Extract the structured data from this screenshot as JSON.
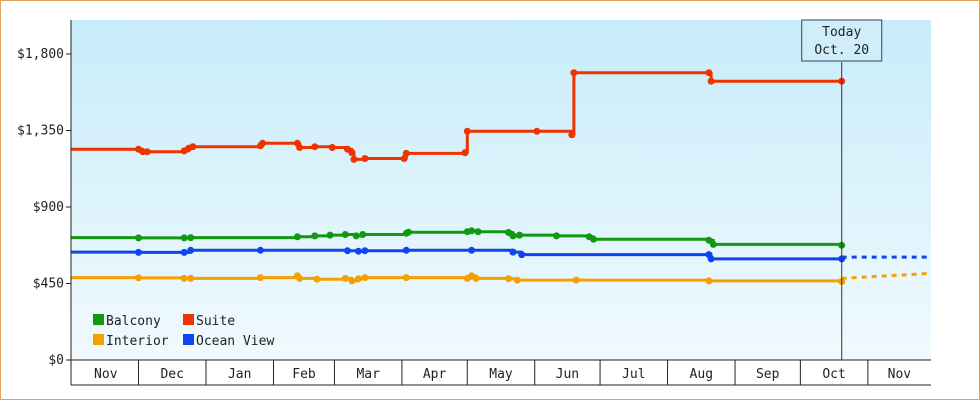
{
  "chart_data": {
    "type": "line",
    "title": "",
    "xlabel": "",
    "ylabel": "",
    "ylim": [
      0,
      2000
    ],
    "yticks": [
      {
        "value": 0,
        "label": "$0"
      },
      {
        "value": 450,
        "label": "$450"
      },
      {
        "value": 900,
        "label": "$900"
      },
      {
        "value": 1350,
        "label": "$1,350"
      },
      {
        "value": 1800,
        "label": "$1,800"
      }
    ],
    "x_range": [
      "2024-10-31",
      "2025-11-30"
    ],
    "months": [
      {
        "label": "Nov",
        "start": "2024-11-01",
        "end": "2024-12-01"
      },
      {
        "label": "Dec",
        "start": "2024-12-01",
        "end": "2025-01-01"
      },
      {
        "label": "Jan",
        "start": "2025-01-01",
        "end": "2025-02-01"
      },
      {
        "label": "Feb",
        "start": "2025-02-01",
        "end": "2025-03-01"
      },
      {
        "label": "Mar",
        "start": "2025-03-01",
        "end": "2025-04-01"
      },
      {
        "label": "Apr",
        "start": "2025-04-01",
        "end": "2025-05-01"
      },
      {
        "label": "May",
        "start": "2025-05-01",
        "end": "2025-06-01"
      },
      {
        "label": "Jun",
        "start": "2025-06-01",
        "end": "2025-07-01"
      },
      {
        "label": "Jul",
        "start": "2025-07-01",
        "end": "2025-08-01"
      },
      {
        "label": "Aug",
        "start": "2025-08-01",
        "end": "2025-09-01"
      },
      {
        "label": "Sep",
        "start": "2025-09-01",
        "end": "2025-10-01"
      },
      {
        "label": "Oct",
        "start": "2025-10-01",
        "end": "2025-11-01"
      },
      {
        "label": "Nov",
        "start": "2025-11-01",
        "end": "2025-11-30"
      }
    ],
    "today": {
      "date": "2025-10-20",
      "label_line1": "Today",
      "label_line2": "Oct. 20"
    },
    "grid": false,
    "legend_position": "bottom-left",
    "series": [
      {
        "name": "Balcony",
        "color": "#119911",
        "points": [
          [
            "2024-10-31",
            720
          ],
          [
            "2024-12-01",
            718
          ],
          [
            "2024-12-22",
            718
          ],
          [
            "2024-12-25",
            720
          ],
          [
            "2025-02-12",
            725
          ],
          [
            "2025-02-20",
            730
          ],
          [
            "2025-02-27",
            735
          ],
          [
            "2025-03-06",
            738
          ],
          [
            "2025-03-11",
            730
          ],
          [
            "2025-03-14",
            738
          ],
          [
            "2025-04-03",
            745
          ],
          [
            "2025-04-04",
            752
          ],
          [
            "2025-05-01",
            755
          ],
          [
            "2025-05-03",
            760
          ],
          [
            "2025-05-06",
            755
          ],
          [
            "2025-05-20",
            750
          ],
          [
            "2025-05-22",
            730
          ],
          [
            "2025-05-25",
            735
          ],
          [
            "2025-06-11",
            730
          ],
          [
            "2025-06-26",
            725
          ],
          [
            "2025-06-28",
            710
          ],
          [
            "2025-08-20",
            705
          ],
          [
            "2025-08-22",
            680
          ],
          [
            "2025-10-20",
            675
          ]
        ],
        "projection": null
      },
      {
        "name": "Suite",
        "color": "#ee3300",
        "points": [
          [
            "2024-10-31",
            1240
          ],
          [
            "2024-12-01",
            1240
          ],
          [
            "2024-12-03",
            1225
          ],
          [
            "2024-12-05",
            1225
          ],
          [
            "2024-12-22",
            1230
          ],
          [
            "2024-12-24",
            1245
          ],
          [
            "2024-12-26",
            1255
          ],
          [
            "2025-01-26",
            1260
          ],
          [
            "2025-01-27",
            1275
          ],
          [
            "2025-02-12",
            1275
          ],
          [
            "2025-02-13",
            1250
          ],
          [
            "2025-02-20",
            1255
          ],
          [
            "2025-02-28",
            1250
          ],
          [
            "2025-03-07",
            1240
          ],
          [
            "2025-03-09",
            1220
          ],
          [
            "2025-03-10",
            1180
          ],
          [
            "2025-03-15",
            1185
          ],
          [
            "2025-04-02",
            1185
          ],
          [
            "2025-04-03",
            1215
          ],
          [
            "2025-04-30",
            1220
          ],
          [
            "2025-05-01",
            1345
          ],
          [
            "2025-06-02",
            1345
          ],
          [
            "2025-06-18",
            1325
          ],
          [
            "2025-06-19",
            1690
          ],
          [
            "2025-08-20",
            1690
          ],
          [
            "2025-08-21",
            1640
          ],
          [
            "2025-10-20",
            1640
          ]
        ],
        "projection": null
      },
      {
        "name": "Interior",
        "color": "#f5a000",
        "points": [
          [
            "2024-10-31",
            485
          ],
          [
            "2024-12-01",
            483
          ],
          [
            "2024-12-22",
            480
          ],
          [
            "2024-12-25",
            480
          ],
          [
            "2025-01-26",
            485
          ],
          [
            "2025-02-12",
            495
          ],
          [
            "2025-02-13",
            480
          ],
          [
            "2025-02-21",
            475
          ],
          [
            "2025-03-06",
            480
          ],
          [
            "2025-03-09",
            465
          ],
          [
            "2025-03-12",
            478
          ],
          [
            "2025-03-15",
            485
          ],
          [
            "2025-04-03",
            485
          ],
          [
            "2025-05-01",
            480
          ],
          [
            "2025-05-03",
            495
          ],
          [
            "2025-05-05",
            480
          ],
          [
            "2025-05-20",
            478
          ],
          [
            "2025-05-24",
            470
          ],
          [
            "2025-06-20",
            470
          ],
          [
            "2025-08-20",
            465
          ],
          [
            "2025-10-20",
            462
          ]
        ],
        "projection": {
          "from": [
            "2025-10-20",
            480
          ],
          "to": [
            "2025-11-30",
            510
          ]
        }
      },
      {
        "name": "Ocean View",
        "color": "#1144ee",
        "points": [
          [
            "2024-10-31",
            635
          ],
          [
            "2024-12-01",
            633
          ],
          [
            "2024-12-22",
            633
          ],
          [
            "2024-12-25",
            645
          ],
          [
            "2025-01-26",
            645
          ],
          [
            "2025-03-07",
            643
          ],
          [
            "2025-03-12",
            640
          ],
          [
            "2025-03-15",
            643
          ],
          [
            "2025-04-03",
            645
          ],
          [
            "2025-05-03",
            645
          ],
          [
            "2025-05-22",
            635
          ],
          [
            "2025-05-26",
            620
          ],
          [
            "2025-08-20",
            620
          ],
          [
            "2025-08-21",
            595
          ],
          [
            "2025-10-20",
            595
          ]
        ],
        "projection": {
          "from": [
            "2025-10-20",
            605
          ],
          "to": [
            "2025-11-30",
            605
          ]
        }
      }
    ]
  }
}
